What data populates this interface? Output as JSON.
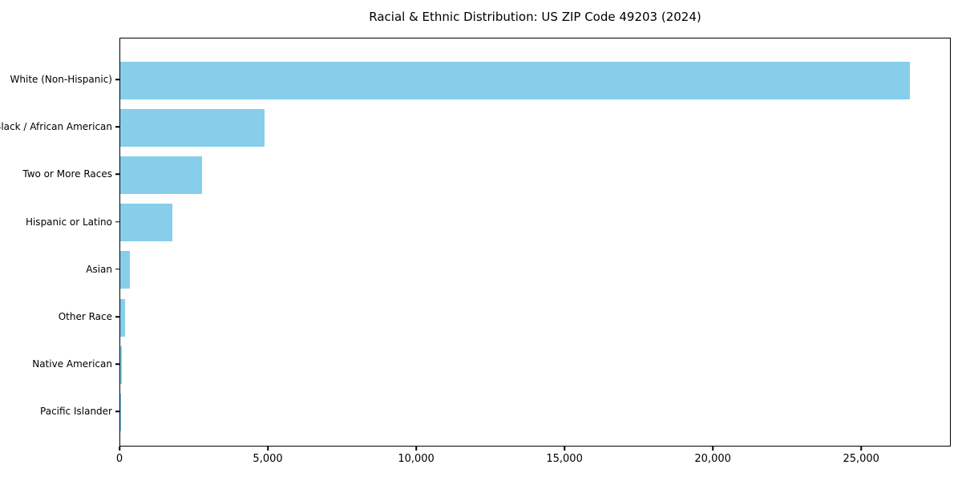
{
  "chart_data": {
    "type": "bar",
    "orientation": "horizontal",
    "title": "Racial & Ethnic Distribution: US ZIP Code 49203 (2024)",
    "categories": [
      "White (Non-Hispanic)",
      "Black / African American",
      "Two or More Races",
      "Hispanic or Latino",
      "Asian",
      "Other Race",
      "Native American",
      "Pacific Islander"
    ],
    "values": [
      26590,
      4850,
      2750,
      1750,
      320,
      150,
      45,
      15
    ],
    "xlabel": "",
    "ylabel": "",
    "xlim": [
      0,
      27940
    ],
    "xticks": {
      "values": [
        0,
        5000,
        10000,
        15000,
        20000,
        25000
      ],
      "labels": [
        "0",
        "5,000",
        "10,000",
        "15,000",
        "20,000",
        "25,000"
      ]
    },
    "bar_color": "#87CEEB",
    "grid": false,
    "legend_position": "none"
  }
}
